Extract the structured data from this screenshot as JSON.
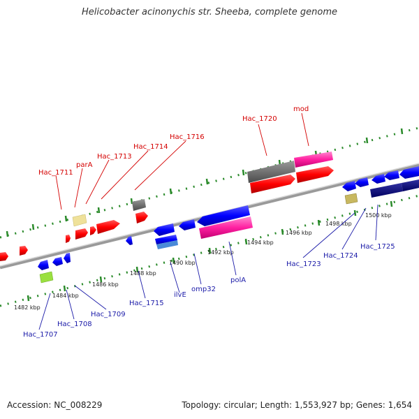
{
  "header": {
    "title": "Helicobacter acinonychis str. Sheeba, complete genome"
  },
  "footer": {
    "accession": "Accession: NC_008229",
    "summary": "Topology: circular; Length: 1,553,927 bp; Genes: 1,654"
  },
  "scale": {
    "ticks": [
      {
        "label": "1482 kbp"
      },
      {
        "label": "1484 kbp"
      },
      {
        "label": "1486 kbp"
      },
      {
        "label": "1488 kbp"
      },
      {
        "label": "1490 kbp"
      },
      {
        "label": "1492 kbp"
      },
      {
        "label": "1494 kbp"
      },
      {
        "label": "1496 kbp"
      },
      {
        "label": "1498 kbp"
      },
      {
        "label": "1500 kbp"
      }
    ]
  },
  "genes_top": [
    {
      "label": "Hac_1711"
    },
    {
      "label": "parA"
    },
    {
      "label": "Hac_1713"
    },
    {
      "label": "Hac_1714"
    },
    {
      "label": "Hac_1716"
    },
    {
      "label": "Hac_1720"
    },
    {
      "label": "mod"
    }
  ],
  "genes_bottom": [
    {
      "label": "Hac_1707"
    },
    {
      "label": "Hac_1708"
    },
    {
      "label": "Hac_1709"
    },
    {
      "label": "Hac_1715"
    },
    {
      "label": "ilvE"
    },
    {
      "label": "omp32"
    },
    {
      "label": "polA"
    },
    {
      "label": "Hac_1723"
    },
    {
      "label": "Hac_1724"
    },
    {
      "label": "Hac_1725"
    }
  ],
  "colors": {
    "forward_gene": "#ff0000",
    "reverse_gene": "#0000ff",
    "top_label": "#d40000",
    "bottom_label": "#1a1aa8",
    "backbone": "#888888",
    "scale_ticks": "#2a8a2a"
  }
}
